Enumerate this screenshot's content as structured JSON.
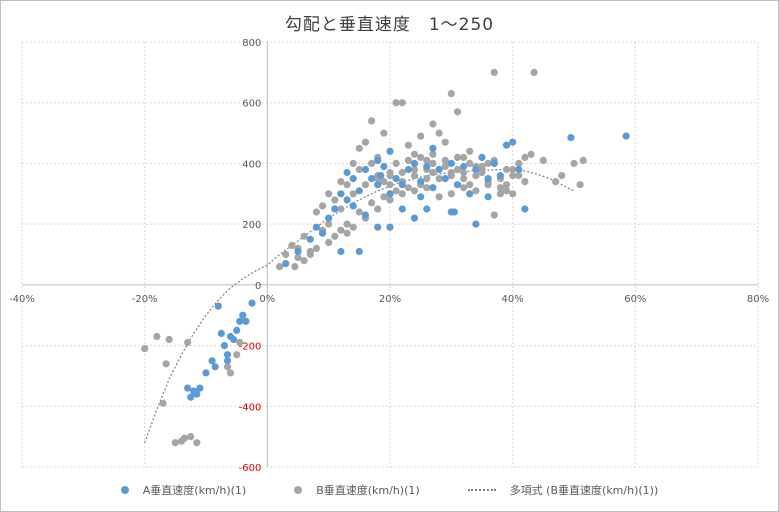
{
  "chart_data": {
    "type": "scatter",
    "title": "勾配と垂直速度　1～250",
    "xlim": [
      -0.4,
      0.8
    ],
    "ylim": [
      -600,
      800
    ],
    "x_ticks": [
      "-40%",
      "-20%",
      "0%",
      "20%",
      "40%",
      "60%",
      "80%"
    ],
    "y_ticks": [
      "800",
      "600",
      "400",
      "200",
      "0",
      "-200",
      "-400",
      "-600"
    ],
    "negative_tick_color": "#e00000",
    "grid": true,
    "legend_position": "bottom",
    "series": [
      {
        "name": "A垂直速度(km/h)(1)",
        "color": "#5b9bd5",
        "points": [
          [
            -0.08,
            -70
          ],
          [
            -0.075,
            -160
          ],
          [
            -0.07,
            -200
          ],
          [
            -0.065,
            -230
          ],
          [
            -0.06,
            -170
          ],
          [
            -0.055,
            -180
          ],
          [
            -0.05,
            -150
          ],
          [
            -0.045,
            -120
          ],
          [
            -0.04,
            -100
          ],
          [
            -0.035,
            -120
          ],
          [
            -0.09,
            -250
          ],
          [
            -0.085,
            -270
          ],
          [
            -0.1,
            -290
          ],
          [
            -0.11,
            -340
          ],
          [
            -0.12,
            -350
          ],
          [
            -0.13,
            -340
          ],
          [
            -0.125,
            -370
          ],
          [
            -0.115,
            -360
          ],
          [
            -0.025,
            -60
          ],
          [
            -0.065,
            -250
          ],
          [
            0.03,
            70
          ],
          [
            0.05,
            110
          ],
          [
            0.07,
            150
          ],
          [
            0.08,
            190
          ],
          [
            0.09,
            170
          ],
          [
            0.1,
            220
          ],
          [
            0.11,
            250
          ],
          [
            0.12,
            300
          ],
          [
            0.13,
            280
          ],
          [
            0.14,
            350
          ],
          [
            0.15,
            310
          ],
          [
            0.16,
            380
          ],
          [
            0.17,
            350
          ],
          [
            0.18,
            330
          ],
          [
            0.19,
            390
          ],
          [
            0.2,
            300
          ],
          [
            0.21,
            350
          ],
          [
            0.22,
            330
          ],
          [
            0.23,
            380
          ],
          [
            0.24,
            400
          ],
          [
            0.25,
            340
          ],
          [
            0.26,
            390
          ],
          [
            0.27,
            320
          ],
          [
            0.28,
            380
          ],
          [
            0.29,
            350
          ],
          [
            0.3,
            400
          ],
          [
            0.31,
            330
          ],
          [
            0.32,
            390
          ],
          [
            0.33,
            300
          ],
          [
            0.34,
            380
          ],
          [
            0.35,
            420
          ],
          [
            0.36,
            350
          ],
          [
            0.37,
            400
          ],
          [
            0.38,
            360
          ],
          [
            0.39,
            460
          ],
          [
            0.4,
            470
          ],
          [
            0.41,
            380
          ],
          [
            0.42,
            250
          ],
          [
            0.495,
            485
          ],
          [
            0.585,
            490
          ],
          [
            0.12,
            110
          ],
          [
            0.15,
            110
          ],
          [
            0.18,
            190
          ],
          [
            0.2,
            190
          ],
          [
            0.22,
            250
          ],
          [
            0.26,
            250
          ],
          [
            0.3,
            240
          ],
          [
            0.34,
            200
          ],
          [
            0.16,
            230
          ],
          [
            0.14,
            260
          ],
          [
            0.13,
            370
          ],
          [
            0.18,
            410
          ],
          [
            0.2,
            440
          ],
          [
            0.27,
            450
          ],
          [
            0.305,
            240
          ],
          [
            0.24,
            220
          ],
          [
            0.185,
            360
          ],
          [
            0.25,
            290
          ],
          [
            0.36,
            290
          ]
        ]
      },
      {
        "name": "B垂直速度(km/h)(1)",
        "color": "#a5a5a5",
        "points": [
          [
            -0.2,
            -210
          ],
          [
            -0.18,
            -170
          ],
          [
            -0.16,
            -180
          ],
          [
            -0.13,
            -190
          ],
          [
            -0.17,
            -390
          ],
          [
            -0.165,
            -260
          ],
          [
            -0.15,
            -520
          ],
          [
            -0.14,
            -515
          ],
          [
            -0.135,
            -505
          ],
          [
            -0.125,
            -500
          ],
          [
            -0.115,
            -520
          ],
          [
            -0.05,
            -230
          ],
          [
            -0.045,
            -190
          ],
          [
            -0.06,
            -290
          ],
          [
            -0.065,
            -270
          ],
          [
            0.02,
            60
          ],
          [
            0.03,
            100
          ],
          [
            0.04,
            130
          ],
          [
            0.05,
            90
          ],
          [
            0.06,
            160
          ],
          [
            0.07,
            110
          ],
          [
            0.08,
            240
          ],
          [
            0.09,
            260
          ],
          [
            0.1,
            300
          ],
          [
            0.11,
            280
          ],
          [
            0.12,
            340
          ],
          [
            0.13,
            200
          ],
          [
            0.14,
            400
          ],
          [
            0.15,
            450
          ],
          [
            0.16,
            470
          ],
          [
            0.17,
            540
          ],
          [
            0.18,
            420
          ],
          [
            0.19,
            500
          ],
          [
            0.2,
            370
          ],
          [
            0.21,
            600
          ],
          [
            0.22,
            600
          ],
          [
            0.23,
            460
          ],
          [
            0.24,
            430
          ],
          [
            0.25,
            490
          ],
          [
            0.26,
            410
          ],
          [
            0.27,
            530
          ],
          [
            0.28,
            500
          ],
          [
            0.29,
            470
          ],
          [
            0.3,
            630
          ],
          [
            0.31,
            570
          ],
          [
            0.32,
            420
          ],
          [
            0.33,
            440
          ],
          [
            0.34,
            390
          ],
          [
            0.35,
            380
          ],
          [
            0.36,
            400
          ],
          [
            0.37,
            700
          ],
          [
            0.38,
            350
          ],
          [
            0.39,
            330
          ],
          [
            0.4,
            380
          ],
          [
            0.41,
            400
          ],
          [
            0.42,
            420
          ],
          [
            0.435,
            700
          ],
          [
            0.45,
            410
          ],
          [
            0.47,
            340
          ],
          [
            0.48,
            360
          ],
          [
            0.5,
            400
          ],
          [
            0.51,
            330
          ],
          [
            0.515,
            410
          ],
          [
            0.08,
            120
          ],
          [
            0.1,
            140
          ],
          [
            0.12,
            250
          ],
          [
            0.14,
            300
          ],
          [
            0.16,
            330
          ],
          [
            0.18,
            360
          ],
          [
            0.2,
            330
          ],
          [
            0.22,
            340
          ],
          [
            0.24,
            360
          ],
          [
            0.26,
            350
          ],
          [
            0.28,
            380
          ],
          [
            0.3,
            370
          ],
          [
            0.32,
            350
          ],
          [
            0.34,
            360
          ],
          [
            0.36,
            340
          ],
          [
            0.38,
            300
          ],
          [
            0.4,
            360
          ],
          [
            0.42,
            340
          ],
          [
            0.11,
            160
          ],
          [
            0.13,
            170
          ],
          [
            0.15,
            240
          ],
          [
            0.17,
            270
          ],
          [
            0.19,
            290
          ],
          [
            0.21,
            310
          ],
          [
            0.23,
            320
          ],
          [
            0.25,
            330
          ],
          [
            0.27,
            370
          ],
          [
            0.29,
            390
          ],
          [
            0.31,
            380
          ],
          [
            0.33,
            330
          ],
          [
            0.35,
            370
          ],
          [
            0.37,
            230
          ],
          [
            0.39,
            310
          ],
          [
            0.43,
            430
          ],
          [
            0.12,
            180
          ],
          [
            0.14,
            190
          ],
          [
            0.16,
            220
          ],
          [
            0.18,
            250
          ],
          [
            0.2,
            280
          ],
          [
            0.22,
            300
          ],
          [
            0.24,
            310
          ],
          [
            0.26,
            320
          ],
          [
            0.28,
            290
          ],
          [
            0.3,
            300
          ],
          [
            0.32,
            320
          ],
          [
            0.34,
            310
          ],
          [
            0.36,
            330
          ],
          [
            0.38,
            320
          ],
          [
            0.4,
            300
          ],
          [
            0.1,
            200
          ],
          [
            0.09,
            180
          ],
          [
            0.07,
            100
          ],
          [
            0.06,
            80
          ],
          [
            0.05,
            120
          ],
          [
            0.045,
            60
          ],
          [
            0.13,
            330
          ],
          [
            0.15,
            380
          ],
          [
            0.17,
            400
          ],
          [
            0.19,
            340
          ],
          [
            0.21,
            400
          ],
          [
            0.23,
            410
          ],
          [
            0.25,
            420
          ],
          [
            0.27,
            430
          ],
          [
            0.29,
            410
          ],
          [
            0.31,
            420
          ],
          [
            0.33,
            400
          ],
          [
            0.35,
            390
          ],
          [
            0.37,
            410
          ],
          [
            0.39,
            380
          ],
          [
            0.41,
            360
          ],
          [
            0.26,
            380
          ],
          [
            0.28,
            350
          ],
          [
            0.3,
            360
          ],
          [
            0.32,
            370
          ],
          [
            0.27,
            400
          ],
          [
            0.24,
            380
          ],
          [
            0.22,
            370
          ],
          [
            0.2,
            360
          ],
          [
            0.18,
            350
          ]
        ]
      }
    ],
    "trendline": {
      "name": "多項式 (B垂直速度(km/h)(1))",
      "color": "#7f7f7f",
      "points": [
        [
          -0.2,
          -520
        ],
        [
          -0.18,
          -410
        ],
        [
          -0.16,
          -310
        ],
        [
          -0.14,
          -230
        ],
        [
          -0.12,
          -160
        ],
        [
          -0.1,
          -100
        ],
        [
          -0.08,
          -50
        ],
        [
          -0.06,
          -10
        ],
        [
          -0.04,
          20
        ],
        [
          -0.02,
          45
        ],
        [
          0,
          65
        ],
        [
          0.02,
          100
        ],
        [
          0.04,
          130
        ],
        [
          0.06,
          160
        ],
        [
          0.08,
          190
        ],
        [
          0.1,
          220
        ],
        [
          0.12,
          245
        ],
        [
          0.14,
          270
        ],
        [
          0.16,
          290
        ],
        [
          0.18,
          310
        ],
        [
          0.2,
          325
        ],
        [
          0.22,
          340
        ],
        [
          0.24,
          350
        ],
        [
          0.26,
          360
        ],
        [
          0.28,
          365
        ],
        [
          0.3,
          370
        ],
        [
          0.32,
          373
        ],
        [
          0.34,
          376
        ],
        [
          0.36,
          378
        ],
        [
          0.38,
          380
        ],
        [
          0.4,
          380
        ],
        [
          0.42,
          375
        ],
        [
          0.44,
          365
        ],
        [
          0.46,
          350
        ],
        [
          0.48,
          330
        ],
        [
          0.5,
          310
        ]
      ]
    }
  }
}
